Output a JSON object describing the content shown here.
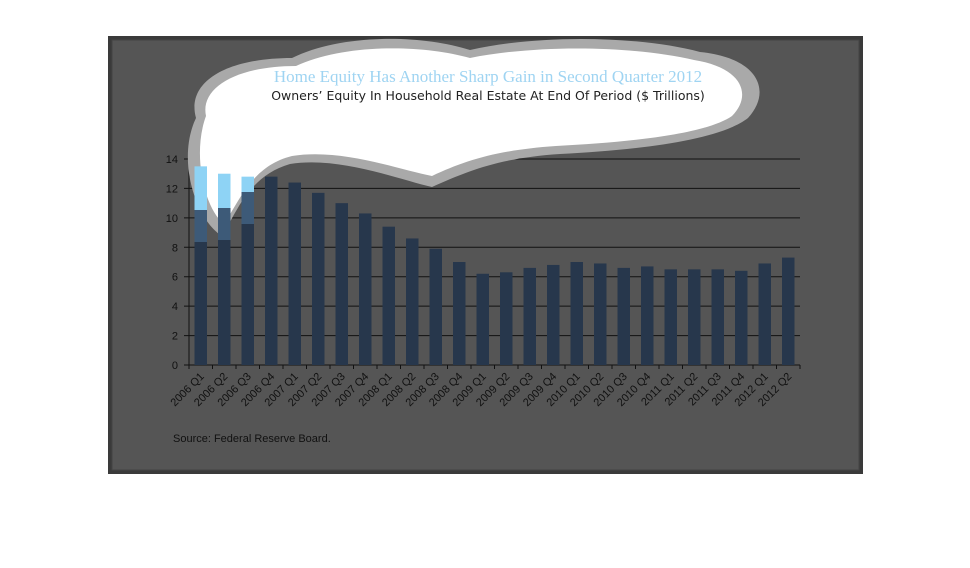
{
  "chart_data": {
    "type": "bar",
    "title": "Home Equity Has Another Sharp Gain in Second Quarter 2012",
    "subtitle": "Owners’ Equity In Household Real Estate At End Of Period ($ Trillions)",
    "source": "Source:  Federal Reserve Board.",
    "categories": [
      "2006 Q1",
      "2006 Q2",
      "2006 Q3",
      "2006 Q4",
      "2007 Q1",
      "2007 Q2",
      "2007 Q3",
      "2007 Q4",
      "2008 Q1",
      "2008 Q2",
      "2008 Q3",
      "2008 Q4",
      "2009 Q1",
      "2009 Q2",
      "2009 Q3",
      "2009 Q4",
      "2010 Q1",
      "2010 Q2",
      "2010 Q3",
      "2010 Q4",
      "2011 Q1",
      "2011 Q2",
      "2011 Q3",
      "2011 Q4",
      "2012 Q1",
      "2012 Q2"
    ],
    "values": [
      13.5,
      13.0,
      12.8,
      12.8,
      12.4,
      11.7,
      11.0,
      10.3,
      9.4,
      8.6,
      7.9,
      7.0,
      6.2,
      6.3,
      6.6,
      6.8,
      7.0,
      6.9,
      6.6,
      6.7,
      6.5,
      6.5,
      6.5,
      6.4,
      6.9,
      7.3
    ],
    "ylim": [
      0,
      14
    ],
    "yticks": [
      0,
      2,
      4,
      6,
      8,
      10,
      12,
      14
    ],
    "grid": true,
    "legend": "none",
    "xlabel": "",
    "ylabel": ""
  },
  "colors": {
    "background": "#555555",
    "bar": "#27374c",
    "bar_highlight": "#8ed3f5",
    "gridline": "#111111",
    "title": "#9fd4f2"
  }
}
